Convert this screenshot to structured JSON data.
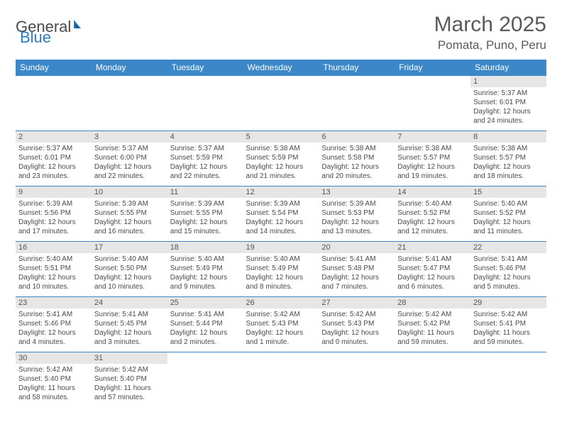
{
  "logo": {
    "text1": "General",
    "text2": "Blue"
  },
  "header": {
    "month_title": "March 2025",
    "location": "Pomata, Puno, Peru"
  },
  "colors": {
    "header_bg": "#3b87c8",
    "header_text": "#ffffff",
    "daynum_bg": "#e6e6e6",
    "border": "#3b87c8",
    "text": "#4a4a4a"
  },
  "weekdays": [
    "Sunday",
    "Monday",
    "Tuesday",
    "Wednesday",
    "Thursday",
    "Friday",
    "Saturday"
  ],
  "weeks": [
    [
      {
        "day": "",
        "sunrise": "",
        "sunset": "",
        "daylight": ""
      },
      {
        "day": "",
        "sunrise": "",
        "sunset": "",
        "daylight": ""
      },
      {
        "day": "",
        "sunrise": "",
        "sunset": "",
        "daylight": ""
      },
      {
        "day": "",
        "sunrise": "",
        "sunset": "",
        "daylight": ""
      },
      {
        "day": "",
        "sunrise": "",
        "sunset": "",
        "daylight": ""
      },
      {
        "day": "",
        "sunrise": "",
        "sunset": "",
        "daylight": ""
      },
      {
        "day": "1",
        "sunrise": "Sunrise: 5:37 AM",
        "sunset": "Sunset: 6:01 PM",
        "daylight": "Daylight: 12 hours and 24 minutes."
      }
    ],
    [
      {
        "day": "2",
        "sunrise": "Sunrise: 5:37 AM",
        "sunset": "Sunset: 6:01 PM",
        "daylight": "Daylight: 12 hours and 23 minutes."
      },
      {
        "day": "3",
        "sunrise": "Sunrise: 5:37 AM",
        "sunset": "Sunset: 6:00 PM",
        "daylight": "Daylight: 12 hours and 22 minutes."
      },
      {
        "day": "4",
        "sunrise": "Sunrise: 5:37 AM",
        "sunset": "Sunset: 5:59 PM",
        "daylight": "Daylight: 12 hours and 22 minutes."
      },
      {
        "day": "5",
        "sunrise": "Sunrise: 5:38 AM",
        "sunset": "Sunset: 5:59 PM",
        "daylight": "Daylight: 12 hours and 21 minutes."
      },
      {
        "day": "6",
        "sunrise": "Sunrise: 5:38 AM",
        "sunset": "Sunset: 5:58 PM",
        "daylight": "Daylight: 12 hours and 20 minutes."
      },
      {
        "day": "7",
        "sunrise": "Sunrise: 5:38 AM",
        "sunset": "Sunset: 5:57 PM",
        "daylight": "Daylight: 12 hours and 19 minutes."
      },
      {
        "day": "8",
        "sunrise": "Sunrise: 5:38 AM",
        "sunset": "Sunset: 5:57 PM",
        "daylight": "Daylight: 12 hours and 18 minutes."
      }
    ],
    [
      {
        "day": "9",
        "sunrise": "Sunrise: 5:39 AM",
        "sunset": "Sunset: 5:56 PM",
        "daylight": "Daylight: 12 hours and 17 minutes."
      },
      {
        "day": "10",
        "sunrise": "Sunrise: 5:39 AM",
        "sunset": "Sunset: 5:55 PM",
        "daylight": "Daylight: 12 hours and 16 minutes."
      },
      {
        "day": "11",
        "sunrise": "Sunrise: 5:39 AM",
        "sunset": "Sunset: 5:55 PM",
        "daylight": "Daylight: 12 hours and 15 minutes."
      },
      {
        "day": "12",
        "sunrise": "Sunrise: 5:39 AM",
        "sunset": "Sunset: 5:54 PM",
        "daylight": "Daylight: 12 hours and 14 minutes."
      },
      {
        "day": "13",
        "sunrise": "Sunrise: 5:39 AM",
        "sunset": "Sunset: 5:53 PM",
        "daylight": "Daylight: 12 hours and 13 minutes."
      },
      {
        "day": "14",
        "sunrise": "Sunrise: 5:40 AM",
        "sunset": "Sunset: 5:52 PM",
        "daylight": "Daylight: 12 hours and 12 minutes."
      },
      {
        "day": "15",
        "sunrise": "Sunrise: 5:40 AM",
        "sunset": "Sunset: 5:52 PM",
        "daylight": "Daylight: 12 hours and 11 minutes."
      }
    ],
    [
      {
        "day": "16",
        "sunrise": "Sunrise: 5:40 AM",
        "sunset": "Sunset: 5:51 PM",
        "daylight": "Daylight: 12 hours and 10 minutes."
      },
      {
        "day": "17",
        "sunrise": "Sunrise: 5:40 AM",
        "sunset": "Sunset: 5:50 PM",
        "daylight": "Daylight: 12 hours and 10 minutes."
      },
      {
        "day": "18",
        "sunrise": "Sunrise: 5:40 AM",
        "sunset": "Sunset: 5:49 PM",
        "daylight": "Daylight: 12 hours and 9 minutes."
      },
      {
        "day": "19",
        "sunrise": "Sunrise: 5:40 AM",
        "sunset": "Sunset: 5:49 PM",
        "daylight": "Daylight: 12 hours and 8 minutes."
      },
      {
        "day": "20",
        "sunrise": "Sunrise: 5:41 AM",
        "sunset": "Sunset: 5:48 PM",
        "daylight": "Daylight: 12 hours and 7 minutes."
      },
      {
        "day": "21",
        "sunrise": "Sunrise: 5:41 AM",
        "sunset": "Sunset: 5:47 PM",
        "daylight": "Daylight: 12 hours and 6 minutes."
      },
      {
        "day": "22",
        "sunrise": "Sunrise: 5:41 AM",
        "sunset": "Sunset: 5:46 PM",
        "daylight": "Daylight: 12 hours and 5 minutes."
      }
    ],
    [
      {
        "day": "23",
        "sunrise": "Sunrise: 5:41 AM",
        "sunset": "Sunset: 5:46 PM",
        "daylight": "Daylight: 12 hours and 4 minutes."
      },
      {
        "day": "24",
        "sunrise": "Sunrise: 5:41 AM",
        "sunset": "Sunset: 5:45 PM",
        "daylight": "Daylight: 12 hours and 3 minutes."
      },
      {
        "day": "25",
        "sunrise": "Sunrise: 5:41 AM",
        "sunset": "Sunset: 5:44 PM",
        "daylight": "Daylight: 12 hours and 2 minutes."
      },
      {
        "day": "26",
        "sunrise": "Sunrise: 5:42 AM",
        "sunset": "Sunset: 5:43 PM",
        "daylight": "Daylight: 12 hours and 1 minute."
      },
      {
        "day": "27",
        "sunrise": "Sunrise: 5:42 AM",
        "sunset": "Sunset: 5:43 PM",
        "daylight": "Daylight: 12 hours and 0 minutes."
      },
      {
        "day": "28",
        "sunrise": "Sunrise: 5:42 AM",
        "sunset": "Sunset: 5:42 PM",
        "daylight": "Daylight: 11 hours and 59 minutes."
      },
      {
        "day": "29",
        "sunrise": "Sunrise: 5:42 AM",
        "sunset": "Sunset: 5:41 PM",
        "daylight": "Daylight: 11 hours and 59 minutes."
      }
    ],
    [
      {
        "day": "30",
        "sunrise": "Sunrise: 5:42 AM",
        "sunset": "Sunset: 5:40 PM",
        "daylight": "Daylight: 11 hours and 58 minutes."
      },
      {
        "day": "31",
        "sunrise": "Sunrise: 5:42 AM",
        "sunset": "Sunset: 5:40 PM",
        "daylight": "Daylight: 11 hours and 57 minutes."
      },
      {
        "day": "",
        "sunrise": "",
        "sunset": "",
        "daylight": ""
      },
      {
        "day": "",
        "sunrise": "",
        "sunset": "",
        "daylight": ""
      },
      {
        "day": "",
        "sunrise": "",
        "sunset": "",
        "daylight": ""
      },
      {
        "day": "",
        "sunrise": "",
        "sunset": "",
        "daylight": ""
      },
      {
        "day": "",
        "sunrise": "",
        "sunset": "",
        "daylight": ""
      }
    ]
  ]
}
